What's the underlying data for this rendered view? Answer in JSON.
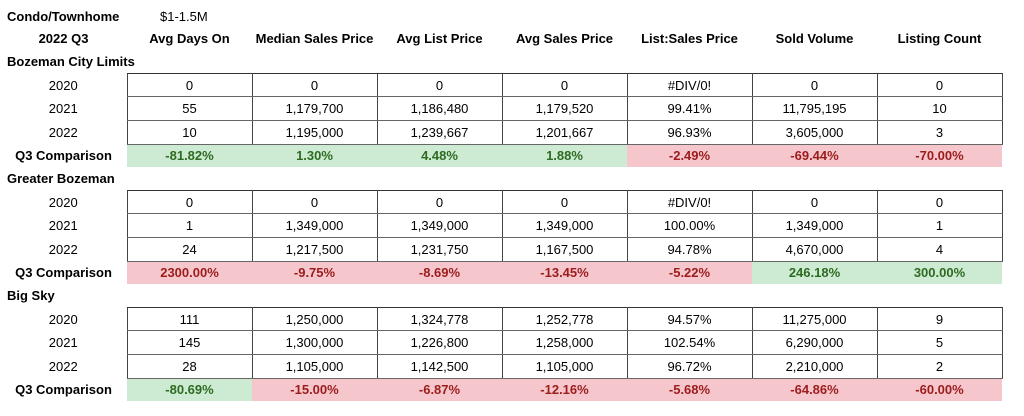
{
  "title": {
    "category": "Condo/Townhome",
    "price_range": "$1-1.5M"
  },
  "header": {
    "period": "2022 Q3",
    "columns": [
      "Avg Days On",
      "Median Sales Price",
      "Avg List Price",
      "Avg Sales Price",
      "List:Sales Price",
      "Sold Volume",
      "Listing Count"
    ]
  },
  "colors": {
    "good_bg": "#cdebd3",
    "good_text": "#2e6b21",
    "bad_bg": "#f5c7cd",
    "bad_text": "#9c1c1c"
  },
  "sections": [
    {
      "name": "Bozeman City Limits",
      "rows": [
        {
          "year": "2020",
          "values": [
            "0",
            "0",
            "0",
            "0",
            "#DIV/0!",
            "0",
            "0"
          ]
        },
        {
          "year": "2021",
          "values": [
            "55",
            "1,179,700",
            "1,186,480",
            "1,179,520",
            "99.41%",
            "11,795,195",
            "10"
          ]
        },
        {
          "year": "2022",
          "values": [
            "10",
            "1,195,000",
            "1,239,667",
            "1,201,667",
            "96.93%",
            "3,605,000",
            "3"
          ]
        }
      ],
      "comparison": {
        "label": "Q3 Comparison",
        "values": [
          {
            "value": "-81.82%",
            "status": "good"
          },
          {
            "value": "1.30%",
            "status": "good"
          },
          {
            "value": "4.48%",
            "status": "good"
          },
          {
            "value": "1.88%",
            "status": "good"
          },
          {
            "value": "-2.49%",
            "status": "bad"
          },
          {
            "value": "-69.44%",
            "status": "bad"
          },
          {
            "value": "-70.00%",
            "status": "bad"
          }
        ]
      }
    },
    {
      "name": "Greater Bozeman",
      "rows": [
        {
          "year": "2020",
          "values": [
            "0",
            "0",
            "0",
            "0",
            "#DIV/0!",
            "0",
            "0"
          ]
        },
        {
          "year": "2021",
          "values": [
            "1",
            "1,349,000",
            "1,349,000",
            "1,349,000",
            "100.00%",
            "1,349,000",
            "1"
          ]
        },
        {
          "year": "2022",
          "values": [
            "24",
            "1,217,500",
            "1,231,750",
            "1,167,500",
            "94.78%",
            "4,670,000",
            "4"
          ]
        }
      ],
      "comparison": {
        "label": "Q3 Comparison",
        "values": [
          {
            "value": "2300.00%",
            "status": "bad"
          },
          {
            "value": "-9.75%",
            "status": "bad"
          },
          {
            "value": "-8.69%",
            "status": "bad"
          },
          {
            "value": "-13.45%",
            "status": "bad"
          },
          {
            "value": "-5.22%",
            "status": "bad"
          },
          {
            "value": "246.18%",
            "status": "good"
          },
          {
            "value": "300.00%",
            "status": "good"
          }
        ]
      }
    },
    {
      "name": "Big Sky",
      "rows": [
        {
          "year": "2020",
          "values": [
            "111",
            "1,250,000",
            "1,324,778",
            "1,252,778",
            "94.57%",
            "11,275,000",
            "9"
          ]
        },
        {
          "year": "2021",
          "values": [
            "145",
            "1,300,000",
            "1,226,800",
            "1,258,000",
            "102.54%",
            "6,290,000",
            "5"
          ]
        },
        {
          "year": "2022",
          "values": [
            "28",
            "1,105,000",
            "1,142,500",
            "1,105,000",
            "96.72%",
            "2,210,000",
            "2"
          ]
        }
      ],
      "comparison": {
        "label": "Q3 Comparison",
        "values": [
          {
            "value": "-80.69%",
            "status": "good"
          },
          {
            "value": "-15.00%",
            "status": "bad"
          },
          {
            "value": "-6.87%",
            "status": "bad"
          },
          {
            "value": "-12.16%",
            "status": "bad"
          },
          {
            "value": "-5.68%",
            "status": "bad"
          },
          {
            "value": "-64.86%",
            "status": "bad"
          },
          {
            "value": "-60.00%",
            "status": "bad"
          }
        ]
      }
    }
  ]
}
